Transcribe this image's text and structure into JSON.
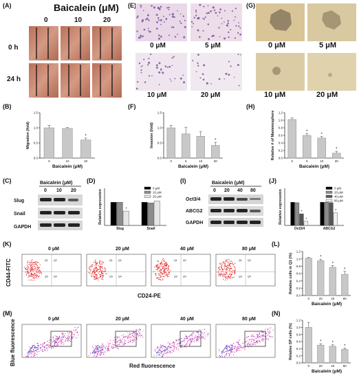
{
  "panels": [
    "(A)",
    "(B)",
    "(C)",
    "(D)",
    "(E)",
    "(F)",
    "(G)",
    "(H)",
    "(I)",
    "(J)",
    "(K)",
    "(L)",
    "(M)",
    "(N)"
  ],
  "A": {
    "title": "Baicalein (μM)",
    "cols": [
      "0",
      "10",
      "20"
    ],
    "rows": [
      "0 h",
      "24 h"
    ]
  },
  "E": {
    "labels": [
      "0 μM",
      "5 μM",
      "10 μM",
      "20 μM"
    ]
  },
  "G": {
    "labels": [
      "0 μM",
      "5 μM",
      "10 μM",
      "20 μM"
    ]
  },
  "C": {
    "title": "Baicalein (μM)",
    "cols": [
      "0",
      "10",
      "20"
    ],
    "rows": [
      "Slug",
      "Snail",
      "GAPDH"
    ]
  },
  "I": {
    "title": "Baicalein (μM)",
    "cols": [
      "0",
      "20",
      "40",
      "80"
    ],
    "rows": [
      "Oct3/4",
      "ABCG2",
      "GAPDH"
    ]
  },
  "K": {
    "conc": [
      "0 μM",
      "20 μM",
      "40 μM",
      "80 μM"
    ],
    "quadrants": [
      "Q1",
      "Q2",
      "Q3",
      "Q4"
    ],
    "ylabel": "CD44-FITC",
    "xlabel": "CD24-PE"
  },
  "M": {
    "conc": [
      "0 μM",
      "20 μM",
      "40 μM",
      "80 μM"
    ],
    "ylabel": "Blue fluorescence",
    "xlabel": "Red fluorescence"
  },
  "colors": {
    "bar": "#c8c8c8",
    "edge": "#8a8a8a"
  },
  "chart_data": [
    {
      "id": "B",
      "type": "bar",
      "categories": [
        "0",
        "10",
        "20"
      ],
      "values": [
        1.0,
        0.98,
        0.6
      ],
      "errors": [
        0.08,
        0.03,
        0.06
      ],
      "sig": [
        false,
        false,
        true
      ],
      "ylabel": "Migration (fold)",
      "xlabel": "Baicalein (μM)",
      "ylim": [
        0,
        1.5
      ],
      "yticks": [
        "0.0",
        "0.5",
        "1.0",
        "1.5"
      ]
    },
    {
      "id": "F",
      "type": "bar",
      "categories": [
        "0",
        "5",
        "10",
        "20"
      ],
      "values": [
        1.0,
        0.8,
        0.72,
        0.42
      ],
      "errors": [
        0.08,
        0.22,
        0.15,
        0.1
      ],
      "sig": [
        false,
        false,
        false,
        true
      ],
      "ylabel": "Invasion (fold)",
      "xlabel": "Baicalein (μM)",
      "ylim": [
        0,
        1.5
      ],
      "yticks": [
        "0.0",
        "0.5",
        "1.0",
        "1.5"
      ]
    },
    {
      "id": "H",
      "type": "bar",
      "categories": [
        "0",
        "5",
        "10",
        "20"
      ],
      "values": [
        1.02,
        0.6,
        0.53,
        0.13
      ],
      "errors": [
        0.04,
        0.05,
        0.04,
        0.05
      ],
      "sig": [
        false,
        true,
        true,
        true
      ],
      "ylabel": "Relative # of Mammosphere",
      "xlabel": "Baicalein (μM)",
      "ylim": [
        0,
        1.2
      ],
      "yticks": [
        "0.0",
        "0.2",
        "0.4",
        "0.6",
        "0.8",
        "1.0",
        "1.2"
      ]
    },
    {
      "id": "D",
      "type": "bar",
      "categories": [
        "Slug",
        "Snail"
      ],
      "series": [
        {
          "name": "0 μM",
          "values": [
            1.0,
            1.0
          ],
          "color": "#000000"
        },
        {
          "name": "10 μM",
          "values": [
            1.0,
            0.97
          ],
          "color": "#8c8c8c"
        },
        {
          "name": "20 μM",
          "values": [
            0.62,
            1.05
          ],
          "color": "#e6e6e6"
        }
      ],
      "sig": [
        [
          false,
          false,
          true
        ],
        [
          false,
          false,
          false
        ]
      ],
      "ylabel": "Relative expression",
      "ylim": [
        0,
        1.6
      ]
    },
    {
      "id": "J",
      "type": "bar",
      "categories": [
        "Oct3/4",
        "ABCG2"
      ],
      "series": [
        {
          "name": "0 μM",
          "values": [
            1.0,
            1.0
          ],
          "color": "#000000"
        },
        {
          "name": "20 μM",
          "values": [
            0.98,
            1.0
          ],
          "color": "#8c8c8c"
        },
        {
          "name": "40 μM",
          "values": [
            0.5,
            0.98
          ],
          "color": "#555555"
        },
        {
          "name": "80 μM",
          "values": [
            0.18,
            0.55
          ],
          "color": "#f0f0f0"
        }
      ],
      "sig": [
        [
          false,
          false,
          true,
          true
        ],
        [
          false,
          false,
          false,
          true
        ]
      ],
      "ylabel": "Relative expression",
      "ylim": [
        0,
        1.6
      ]
    },
    {
      "id": "L",
      "type": "bar",
      "categories": [
        "0",
        "20",
        "40",
        "80"
      ],
      "values": [
        1.02,
        0.95,
        0.77,
        0.58
      ],
      "errors": [
        0.02,
        0.04,
        0.05,
        0.08
      ],
      "sig": [
        false,
        true,
        true,
        true
      ],
      "ylabel": "Relative cells in Q1 (%)",
      "xlabel": "Baicalein (μM)",
      "ylim": [
        0,
        1.2
      ],
      "yticks": [
        "0.0",
        "0.2",
        "0.4",
        "0.6",
        "0.8",
        "1.0",
        "1.2"
      ]
    },
    {
      "id": "N",
      "type": "bar",
      "categories": [
        "0",
        "20",
        "40",
        "80"
      ],
      "values": [
        1.0,
        0.5,
        0.47,
        0.38
      ],
      "errors": [
        0.14,
        0.04,
        0.04,
        0.04
      ],
      "sig": [
        false,
        true,
        true,
        true
      ],
      "ylabel": "Relative SP cells (%)",
      "xlabel": "Baicalein (μM)",
      "ylim": [
        0,
        1.2
      ],
      "yticks": [
        "0.0",
        "0.2",
        "0.4",
        "0.6",
        "0.8",
        "1.0",
        "1.2"
      ]
    }
  ]
}
